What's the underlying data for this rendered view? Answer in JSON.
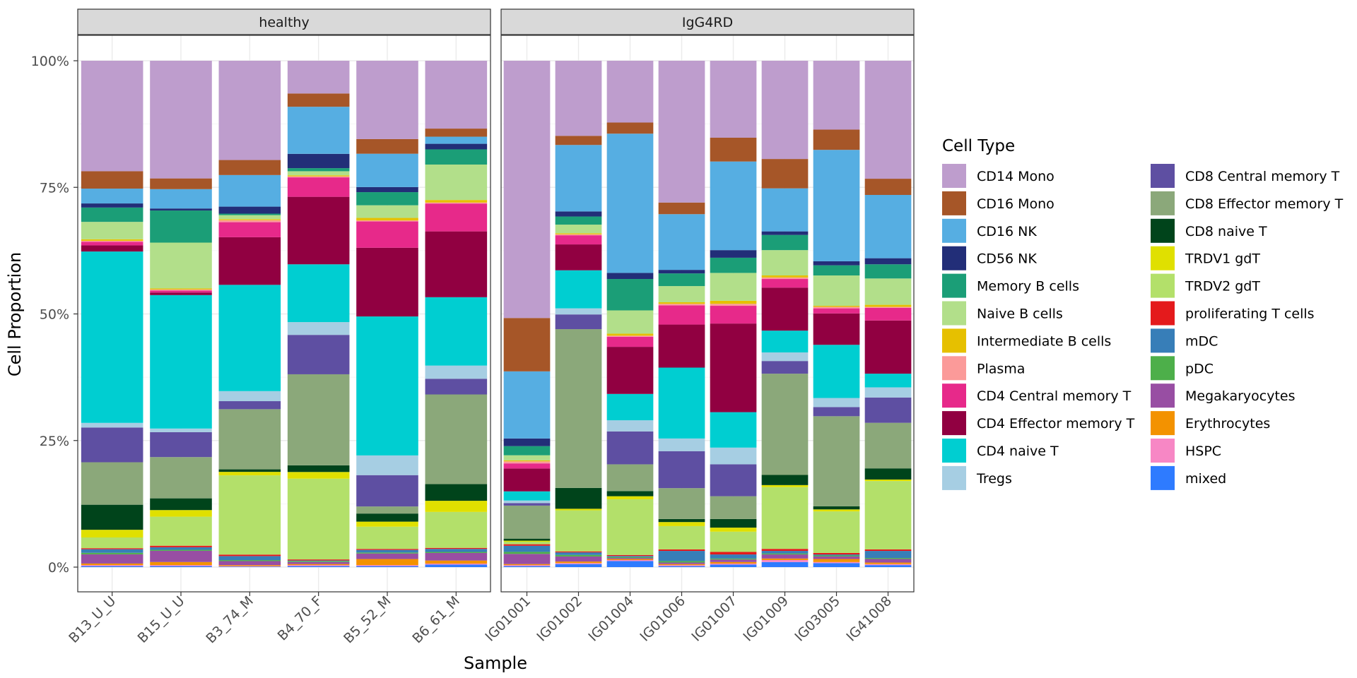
{
  "chart_data": {
    "type": "bar",
    "stacked": true,
    "facets": [
      "healthy",
      "IgG4RD"
    ],
    "xlabel": "Sample",
    "ylabel": "Cell Proportion",
    "ylim": [
      0,
      1
    ],
    "y_ticks": [
      0,
      0.25,
      0.5,
      0.75,
      1.0
    ],
    "y_tick_labels": [
      "0%",
      "25%",
      "50%",
      "75%",
      "100%"
    ],
    "grid": true,
    "legend_title": "Cell Type",
    "legend_position": "right",
    "cell_types": [
      {
        "name": "CD14 Mono",
        "color": "#BE9DCD"
      },
      {
        "name": "CD16 Mono",
        "color": "#A65628"
      },
      {
        "name": "CD16 NK",
        "color": "#56AEE2"
      },
      {
        "name": "CD56 NK",
        "color": "#222E78"
      },
      {
        "name": "Memory B cells",
        "color": "#1B9E77"
      },
      {
        "name": "Naive B cells",
        "color": "#B2DF8A"
      },
      {
        "name": "Intermediate B cells",
        "color": "#E6C000"
      },
      {
        "name": "Plasma",
        "color": "#FB9A99"
      },
      {
        "name": "CD4 Central memory T",
        "color": "#E7298A"
      },
      {
        "name": "CD4 Effector memory T",
        "color": "#910041"
      },
      {
        "name": "CD4 naive T",
        "color": "#00CED1"
      },
      {
        "name": "Tregs",
        "color": "#A6CEE3"
      },
      {
        "name": "CD8 Central memory T",
        "color": "#5E4FA2"
      },
      {
        "name": "CD8 Effector memory T",
        "color": "#8BA87A"
      },
      {
        "name": "CD8 naive T",
        "color": "#00441B"
      },
      {
        "name": "TRDV1 gdT",
        "color": "#E0E000"
      },
      {
        "name": "TRDV2 gdT",
        "color": "#B3E06A"
      },
      {
        "name": "proliferating T cells",
        "color": "#E41A1C"
      },
      {
        "name": "mDC",
        "color": "#377EB8"
      },
      {
        "name": "pDC",
        "color": "#4DAF4A"
      },
      {
        "name": "Megakaryocytes",
        "color": "#984EA3"
      },
      {
        "name": "Erythrocytes",
        "color": "#F39200"
      },
      {
        "name": "HSPC",
        "color": "#F787C5"
      },
      {
        "name": "mixed",
        "color": "#2E7BFF"
      }
    ],
    "stack_order_note": "values listed bottom-to-top order: mixed, HSPC, Erythrocytes, Megakaryocytes, pDC, mDC, proliferating T cells, TRDV2 gdT, TRDV1 gdT, CD8 naive T, CD8 Effector memory T, CD8 Central memory T, Tregs, CD4 naive T, CD4 Effector memory T, CD4 Central memory T, Plasma, Intermediate B cells, Naive B cells, Memory B cells, CD56 NK, CD16 NK, CD16 Mono, CD14 Mono",
    "panels": [
      {
        "facet": "healthy",
        "samples": [
          {
            "name": "B13_U_U",
            "values": {
              "mixed": 0.002,
              "HSPC": 0.002,
              "Erythrocytes": 0.003,
              "Megakaryocytes": 0.018,
              "pDC": 0.003,
              "mDC": 0.007,
              "proliferating T cells": 0.002,
              "TRDV2 gdT": 0.021,
              "TRDV1 gdT": 0.015,
              "CD8 naive T": 0.049,
              "CD8 Effector memory T": 0.083,
              "CD8 Central memory T": 0.068,
              "Tregs": 0.009,
              "CD4 naive T": 0.335,
              "CD4 Effector memory T": 0.012,
              "CD4 Central memory T": 0.007,
              "Plasma": 0.002,
              "Intermediate B cells": 0.003,
              "Naive B cells": 0.034,
              "Memory B cells": 0.028,
              "CD56 NK": 0.008,
              "CD16 NK": 0.029,
              "CD16 Mono": 0.034,
              "CD14 Mono": 0.216
            }
          },
          {
            "name": "B15_U_U",
            "values": {
              "mixed": 0.002,
              "HSPC": 0.002,
              "Erythrocytes": 0.006,
              "Megakaryocytes": 0.022,
              "pDC": 0.002,
              "mDC": 0.005,
              "proliferating T cells": 0.003,
              "TRDV2 gdT": 0.057,
              "TRDV1 gdT": 0.013,
              "CD8 naive T": 0.023,
              "CD8 Effector memory T": 0.081,
              "CD8 Central memory T": 0.049,
              "Tregs": 0.007,
              "CD4 naive T": 0.262,
              "CD4 Effector memory T": 0.005,
              "CD4 Central memory T": 0.004,
              "Plasma": 0.002,
              "Intermediate B cells": 0.002,
              "Naive B cells": 0.09,
              "Memory B cells": 0.063,
              "CD56 NK": 0.004,
              "CD16 NK": 0.038,
              "CD16 Mono": 0.021,
              "CD14 Mono": 0.231
            }
          },
          {
            "name": "B3_74_M",
            "values": {
              "mixed": 0.001,
              "HSPC": 0.001,
              "Erythrocytes": 0.002,
              "Megakaryocytes": 0.008,
              "pDC": 0.002,
              "mDC": 0.008,
              "proliferating T cells": 0.003,
              "TRDV2 gdT": 0.158,
              "TRDV1 gdT": 0.007,
              "CD8 naive T": 0.005,
              "CD8 Effector memory T": 0.12,
              "CD8 Central memory T": 0.016,
              "Tregs": 0.02,
              "CD4 naive T": 0.212,
              "CD4 Effector memory T": 0.095,
              "CD4 Central memory T": 0.03,
              "Plasma": 0.004,
              "Intermediate B cells": 0.002,
              "Naive B cells": 0.008,
              "Memory B cells": 0.003,
              "CD56 NK": 0.014,
              "CD16 NK": 0.063,
              "CD16 Mono": 0.03,
              "CD14 Mono": 0.198
            }
          },
          {
            "name": "B4_70_F",
            "values": {
              "mixed": 0.002,
              "HSPC": 0.002,
              "Erythrocytes": 0.002,
              "Megakaryocytes": 0.004,
              "pDC": 0.002,
              "mDC": 0.001,
              "proliferating T cells": 0.002,
              "TRDV2 gdT": 0.158,
              "TRDV1 gdT": 0.013,
              "CD8 naive T": 0.013,
              "CD8 Effector memory T": 0.178,
              "CD8 Central memory T": 0.077,
              "Tregs": 0.025,
              "CD4 naive T": 0.113,
              "CD4 Effector memory T": 0.132,
              "CD4 Central memory T": 0.038,
              "Plasma": 0.002,
              "Intermediate B cells": 0.002,
              "Naive B cells": 0.008,
              "Memory B cells": 0.006,
              "CD56 NK": 0.028,
              "CD16 NK": 0.092,
              "CD16 Mono": 0.026,
              "CD14 Mono": 0.064
            }
          },
          {
            "name": "B5_52_M",
            "values": {
              "mixed": 0.002,
              "HSPC": 0.002,
              "Erythrocytes": 0.012,
              "Megakaryocytes": 0.011,
              "pDC": 0.002,
              "mDC": 0.005,
              "proliferating T cells": 0.002,
              "TRDV2 gdT": 0.044,
              "TRDV1 gdT": 0.01,
              "CD8 naive T": 0.016,
              "CD8 Effector memory T": 0.014,
              "CD8 Central memory T": 0.062,
              "Tregs": 0.039,
              "CD4 naive T": 0.275,
              "CD4 Effector memory T": 0.136,
              "CD4 Central memory T": 0.052,
              "Plasma": 0.002,
              "Intermediate B cells": 0.005,
              "Naive B cells": 0.025,
              "Memory B cells": 0.026,
              "CD56 NK": 0.01,
              "CD16 NK": 0.066,
              "CD16 Mono": 0.029,
              "CD14 Mono": 0.155
            }
          },
          {
            "name": "B6_61_M",
            "values": {
              "mixed": 0.005,
              "HSPC": 0.002,
              "Erythrocytes": 0.006,
              "Megakaryocytes": 0.015,
              "pDC": 0.002,
              "mDC": 0.006,
              "proliferating T cells": 0.002,
              "TRDV2 gdT": 0.071,
              "TRDV1 gdT": 0.022,
              "CD8 naive T": 0.033,
              "CD8 Effector memory T": 0.177,
              "CD8 Central memory T": 0.031,
              "Tregs": 0.026,
              "CD4 naive T": 0.135,
              "CD4 Effector memory T": 0.13,
              "CD4 Central memory T": 0.055,
              "Plasma": 0.002,
              "Intermediate B cells": 0.005,
              "Naive B cells": 0.07,
              "Memory B cells": 0.03,
              "CD56 NK": 0.011,
              "CD16 NK": 0.014,
              "CD16 Mono": 0.016,
              "CD14 Mono": 0.134
            }
          }
        ]
      },
      {
        "facet": "IgG4RD",
        "samples": [
          {
            "name": "IG01001",
            "values": {
              "mixed": 0.002,
              "HSPC": 0.002,
              "Erythrocytes": 0.002,
              "Megakaryocytes": 0.02,
              "pDC": 0.004,
              "mDC": 0.012,
              "proliferating T cells": 0.003,
              "TRDV2 gdT": 0.005,
              "TRDV1 gdT": 0.002,
              "CD8 naive T": 0.004,
              "CD8 Effector memory T": 0.065,
              "CD8 Central memory T": 0.005,
              "Tregs": 0.005,
              "CD4 naive T": 0.018,
              "CD4 Effector memory T": 0.045,
              "CD4 Central memory T": 0.01,
              "Plasma": 0.004,
              "Intermediate B cells": 0.002,
              "Naive B cells": 0.01,
              "Memory B cells": 0.018,
              "CD56 NK": 0.015,
              "CD16 NK": 0.132,
              "CD16 Mono": 0.105,
              "CD14 Mono": 0.506
            }
          },
          {
            "name": "IG01002",
            "values": {
              "mixed": 0.006,
              "HSPC": 0.002,
              "Erythrocytes": 0.003,
              "Megakaryocytes": 0.01,
              "pDC": 0.003,
              "mDC": 0.005,
              "proliferating T cells": 0.002,
              "TRDV2 gdT": 0.081,
              "TRDV1 gdT": 0.003,
              "CD8 naive T": 0.041,
              "CD8 Effector memory T": 0.313,
              "CD8 Central memory T": 0.029,
              "Tregs": 0.012,
              "CD4 naive T": 0.075,
              "CD4 Effector memory T": 0.051,
              "CD4 Central memory T": 0.018,
              "Plasma": 0.002,
              "Intermediate B cells": 0.002,
              "Naive B cells": 0.017,
              "Memory B cells": 0.016,
              "CD56 NK": 0.01,
              "CD16 NK": 0.131,
              "CD16 Mono": 0.018,
              "CD14 Mono": 0.148
            }
          },
          {
            "name": "IG01004",
            "values": {
              "mixed": 0.012,
              "HSPC": 0.002,
              "Erythrocytes": 0.002,
              "Megakaryocytes": 0.002,
              "pDC": 0.002,
              "mDC": 0.002,
              "proliferating T cells": 0.002,
              "TRDV2 gdT": 0.11,
              "TRDV1 gdT": 0.006,
              "CD8 naive T": 0.01,
              "CD8 Effector memory T": 0.053,
              "CD8 Central memory T": 0.065,
              "Tregs": 0.022,
              "CD4 naive T": 0.052,
              "CD4 Effector memory T": 0.093,
              "CD4 Central memory T": 0.02,
              "Plasma": 0.002,
              "Intermediate B cells": 0.004,
              "Naive B cells": 0.046,
              "Memory B cells": 0.062,
              "CD56 NK": 0.012,
              "CD16 NK": 0.275,
              "CD16 Mono": 0.022,
              "CD14 Mono": 0.122
            }
          },
          {
            "name": "IG01006",
            "values": {
              "mixed": 0.002,
              "HSPC": 0.002,
              "Erythrocytes": 0.002,
              "Megakaryocytes": 0.003,
              "pDC": 0.003,
              "mDC": 0.02,
              "proliferating T cells": 0.003,
              "TRDV2 gdT": 0.046,
              "TRDV1 gdT": 0.008,
              "CD8 naive T": 0.006,
              "CD8 Effector memory T": 0.061,
              "CD8 Central memory T": 0.073,
              "Tregs": 0.025,
              "CD4 naive T": 0.14,
              "CD4 Effector memory T": 0.085,
              "CD4 Central memory T": 0.038,
              "Plasma": 0.003,
              "Intermediate B cells": 0.003,
              "Naive B cells": 0.032,
              "Memory B cells": 0.025,
              "CD56 NK": 0.007,
              "CD16 NK": 0.11,
              "CD16 Mono": 0.023,
              "CD14 Mono": 0.28
            }
          },
          {
            "name": "IG01007",
            "values": {
              "mixed": 0.005,
              "HSPC": 0.002,
              "Erythrocytes": 0.003,
              "Megakaryocytes": 0.005,
              "pDC": 0.002,
              "mDC": 0.008,
              "proliferating T cells": 0.005,
              "TRDV2 gdT": 0.04,
              "TRDV1 gdT": 0.008,
              "CD8 naive T": 0.017,
              "CD8 Effector memory T": 0.045,
              "CD8 Central memory T": 0.063,
              "Tregs": 0.033,
              "CD4 naive T": 0.07,
              "CD4 Effector memory T": 0.175,
              "CD4 Central memory T": 0.035,
              "Plasma": 0.004,
              "Intermediate B cells": 0.006,
              "Naive B cells": 0.055,
              "Memory B cells": 0.03,
              "CD56 NK": 0.015,
              "CD16 NK": 0.175,
              "CD16 Mono": 0.047,
              "CD14 Mono": 0.152
            }
          },
          {
            "name": "IG01009",
            "values": {
              "mixed": 0.01,
              "HSPC": 0.004,
              "Erythrocytes": 0.003,
              "Megakaryocytes": 0.008,
              "pDC": 0.002,
              "mDC": 0.005,
              "proliferating T cells": 0.004,
              "TRDV2 gdT": 0.122,
              "TRDV1 gdT": 0.004,
              "CD8 naive T": 0.02,
              "CD8 Effector memory T": 0.2,
              "CD8 Central memory T": 0.025,
              "Tregs": 0.017,
              "CD4 naive T": 0.043,
              "CD4 Effector memory T": 0.085,
              "CD4 Central memory T": 0.017,
              "Plasma": 0.003,
              "Intermediate B cells": 0.004,
              "Naive B cells": 0.05,
              "Memory B cells": 0.03,
              "CD56 NK": 0.007,
              "CD16 NK": 0.085,
              "CD16 Mono": 0.058,
              "CD14 Mono": 0.194
            }
          },
          {
            "name": "IG03005",
            "values": {
              "mixed": 0.008,
              "HSPC": 0.002,
              "Erythrocytes": 0.006,
              "Megakaryocytes": 0.005,
              "pDC": 0.002,
              "mDC": 0.002,
              "proliferating T cells": 0.003,
              "TRDV2 gdT": 0.082,
              "TRDV1 gdT": 0.004,
              "CD8 naive T": 0.006,
              "CD8 Effector memory T": 0.178,
              "CD8 Central memory T": 0.018,
              "Tregs": 0.018,
              "CD4 naive T": 0.105,
              "CD4 Effector memory T": 0.062,
              "CD4 Central memory T": 0.01,
              "Plasma": 0.003,
              "Intermediate B cells": 0.002,
              "Naive B cells": 0.06,
              "Memory B cells": 0.02,
              "CD56 NK": 0.008,
              "CD16 NK": 0.22,
              "CD16 Mono": 0.04,
              "CD14 Mono": 0.136
            }
          },
          {
            "name": "IG41008",
            "values": {
              "mixed": 0.004,
              "HSPC": 0.002,
              "Erythrocytes": 0.003,
              "Megakaryocytes": 0.007,
              "pDC": 0.002,
              "mDC": 0.014,
              "proliferating T cells": 0.003,
              "TRDV2 gdT": 0.135,
              "TRDV1 gdT": 0.003,
              "CD8 naive T": 0.022,
              "CD8 Effector memory T": 0.09,
              "CD8 Central memory T": 0.05,
              "Tregs": 0.02,
              "CD4 naive T": 0.027,
              "CD4 Effector memory T": 0.105,
              "CD4 Central memory T": 0.025,
              "Plasma": 0.002,
              "Intermediate B cells": 0.004,
              "Naive B cells": 0.052,
              "Memory B cells": 0.028,
              "CD56 NK": 0.012,
              "CD16 NK": 0.125,
              "CD16 Mono": 0.032,
              "CD14 Mono": 0.233
            }
          }
        ]
      }
    ]
  }
}
